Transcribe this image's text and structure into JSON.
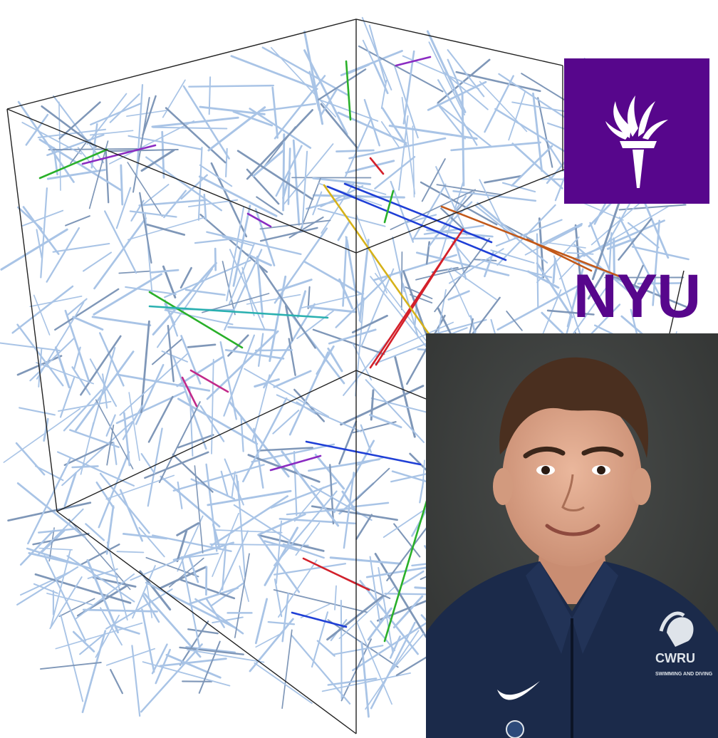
{
  "logo": {
    "text": "NYU",
    "brand_color": "#57068c",
    "icon": "torch-icon"
  },
  "simulation": {
    "description_icon": "fiber-network-cube",
    "fiber_color": "#a9c4e6",
    "highlight_colors": [
      "#1f3fd6",
      "#d4202a",
      "#2ab02a",
      "#8a2bc2",
      "#c2591a",
      "#d6b21a",
      "#2ab0b0",
      "#c22a8a"
    ]
  },
  "portrait": {
    "jacket_color": "#1b2a4a",
    "background_color": "#3b3e3c",
    "jacket_text": "CWRU",
    "jacket_subtext": "SWIMMING AND DIVING",
    "brand_mark": "swoosh-icon",
    "emblem": "spartan-helmet-icon"
  }
}
